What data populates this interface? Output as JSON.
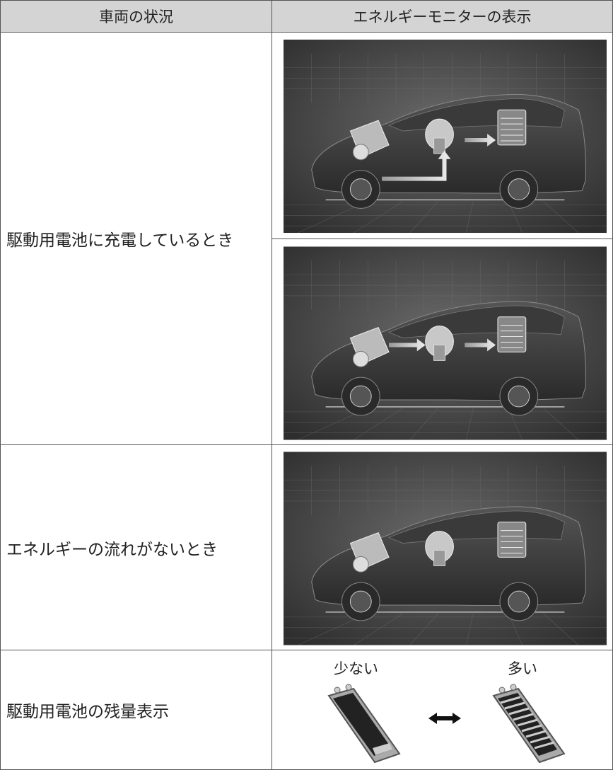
{
  "table": {
    "header": [
      "車両の状況",
      "エネルギーモニターの表示"
    ],
    "rows": [
      {
        "label": "駆動用電池に充電しているとき"
      },
      {
        "label": "エネルギーの流れがないとき"
      },
      {
        "label": "駆動用電池の残量表示",
        "low": "少ない",
        "high": "多い"
      }
    ]
  }
}
